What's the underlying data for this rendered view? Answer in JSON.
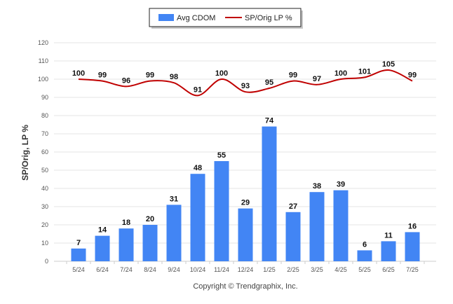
{
  "chart_data": {
    "type": "bar",
    "categories": [
      "5/24",
      "6/24",
      "7/24",
      "8/24",
      "9/24",
      "10/24",
      "11/24",
      "12/24",
      "1/25",
      "2/25",
      "3/25",
      "4/25",
      "5/25",
      "6/25",
      "7/25"
    ],
    "series": [
      {
        "name": "Avg CDOM",
        "type": "bar",
        "color": "#4285f4",
        "values": [
          7,
          14,
          18,
          20,
          31,
          48,
          55,
          29,
          74,
          27,
          38,
          39,
          6,
          11,
          16
        ]
      },
      {
        "name": "SP/Orig LP %",
        "type": "line",
        "color": "#c00000",
        "values": [
          100,
          99,
          96,
          99,
          98,
          91,
          100,
          93,
          95,
          99,
          97,
          100,
          101,
          105,
          99
        ]
      }
    ],
    "ylabel": "SP/Orig, LP %",
    "xlabel": "",
    "ylim": [
      0,
      120
    ],
    "yticks": [
      0,
      10,
      20,
      30,
      40,
      50,
      60,
      70,
      80,
      90,
      100,
      110,
      120
    ],
    "grid": true,
    "legend_position": "top-center",
    "footer": "Copyright © Trendgraphix, Inc."
  }
}
